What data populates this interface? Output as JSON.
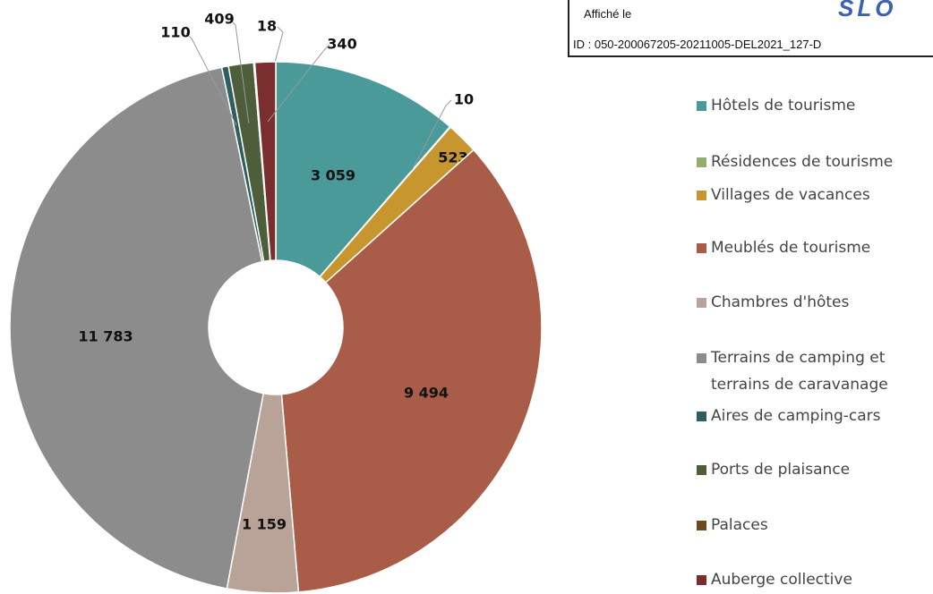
{
  "chart_data": {
    "type": "donut",
    "categories": [
      "Hôtels de tourisme",
      "Résidences de tourisme",
      "Villages de vacances",
      "Meublés de tourisme",
      "Chambres d'hôtes",
      "Terrains de camping et terrains de caravanage",
      "Aires de camping-cars",
      "Ports de plaisance",
      "Palaces",
      "Auberge collective"
    ],
    "values": [
      3059,
      10,
      523,
      9494,
      1159,
      11783,
      110,
      409,
      18,
      340
    ],
    "value_labels": [
      "3 059",
      "10",
      "523",
      "9 494",
      "1 159",
      "11 783",
      "110",
      "409",
      "18",
      "340"
    ],
    "colors": [
      "#4a9a9a",
      "#93ad6e",
      "#c8962e",
      "#a95d48",
      "#b9a398",
      "#8c8c8c",
      "#2e5e5e",
      "#4e5e3a",
      "#6b4a1e",
      "#7a2e2e"
    ],
    "legend": "right"
  },
  "stamp": {
    "line1": "Affiché le",
    "line2": "ID : 050-200067205-20211005-DEL2021_127-D",
    "logo": "SLO"
  }
}
